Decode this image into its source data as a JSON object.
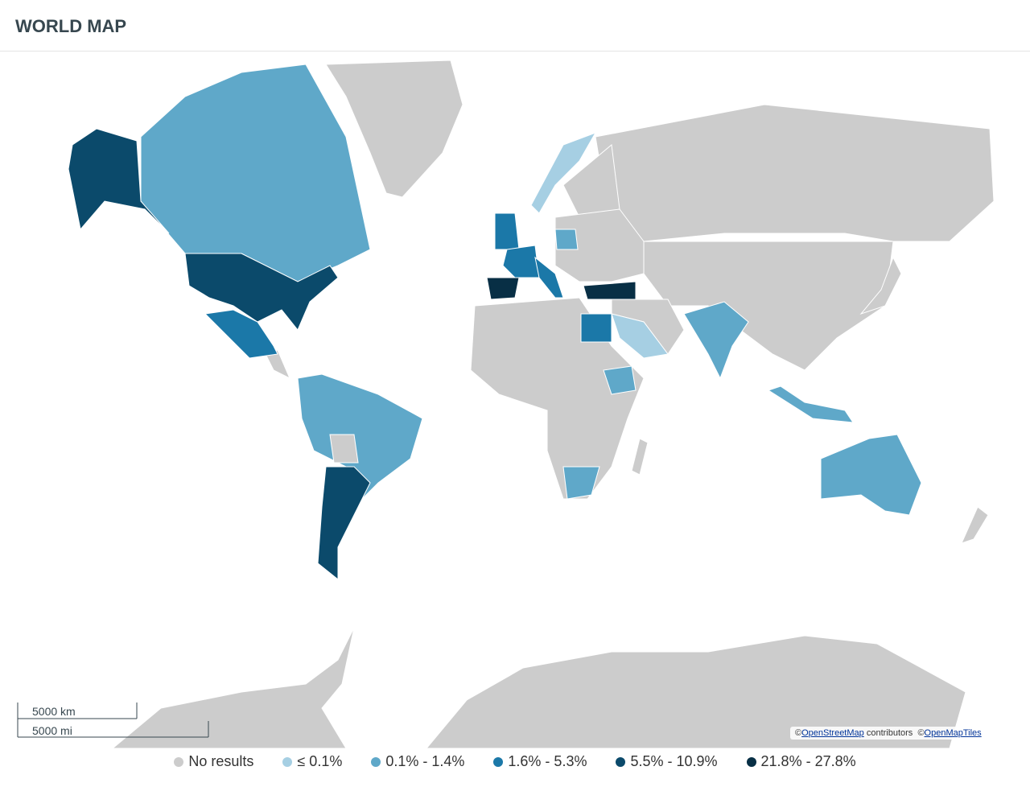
{
  "title": "WORLD MAP",
  "legend": [
    {
      "label": "No results",
      "color": "#cccccc"
    },
    {
      "label": "≤ 0.1%",
      "color": "#a6cfe3"
    },
    {
      "label": "0.1% - 1.4%",
      "color": "#5fa8c9"
    },
    {
      "label": "1.6% - 5.3%",
      "color": "#1b78a8"
    },
    {
      "label": "5.5% - 10.9%",
      "color": "#0b4a6b"
    },
    {
      "label": "21.8% - 27.8%",
      "color": "#082f45"
    }
  ],
  "scale": {
    "km": "5000 km",
    "mi": "5000 mi"
  },
  "attribution": {
    "copy1": "©",
    "link1": "OpenStreetMap",
    "text1": "contributors",
    "copy2": "©",
    "link2": "OpenMapTiles"
  }
}
